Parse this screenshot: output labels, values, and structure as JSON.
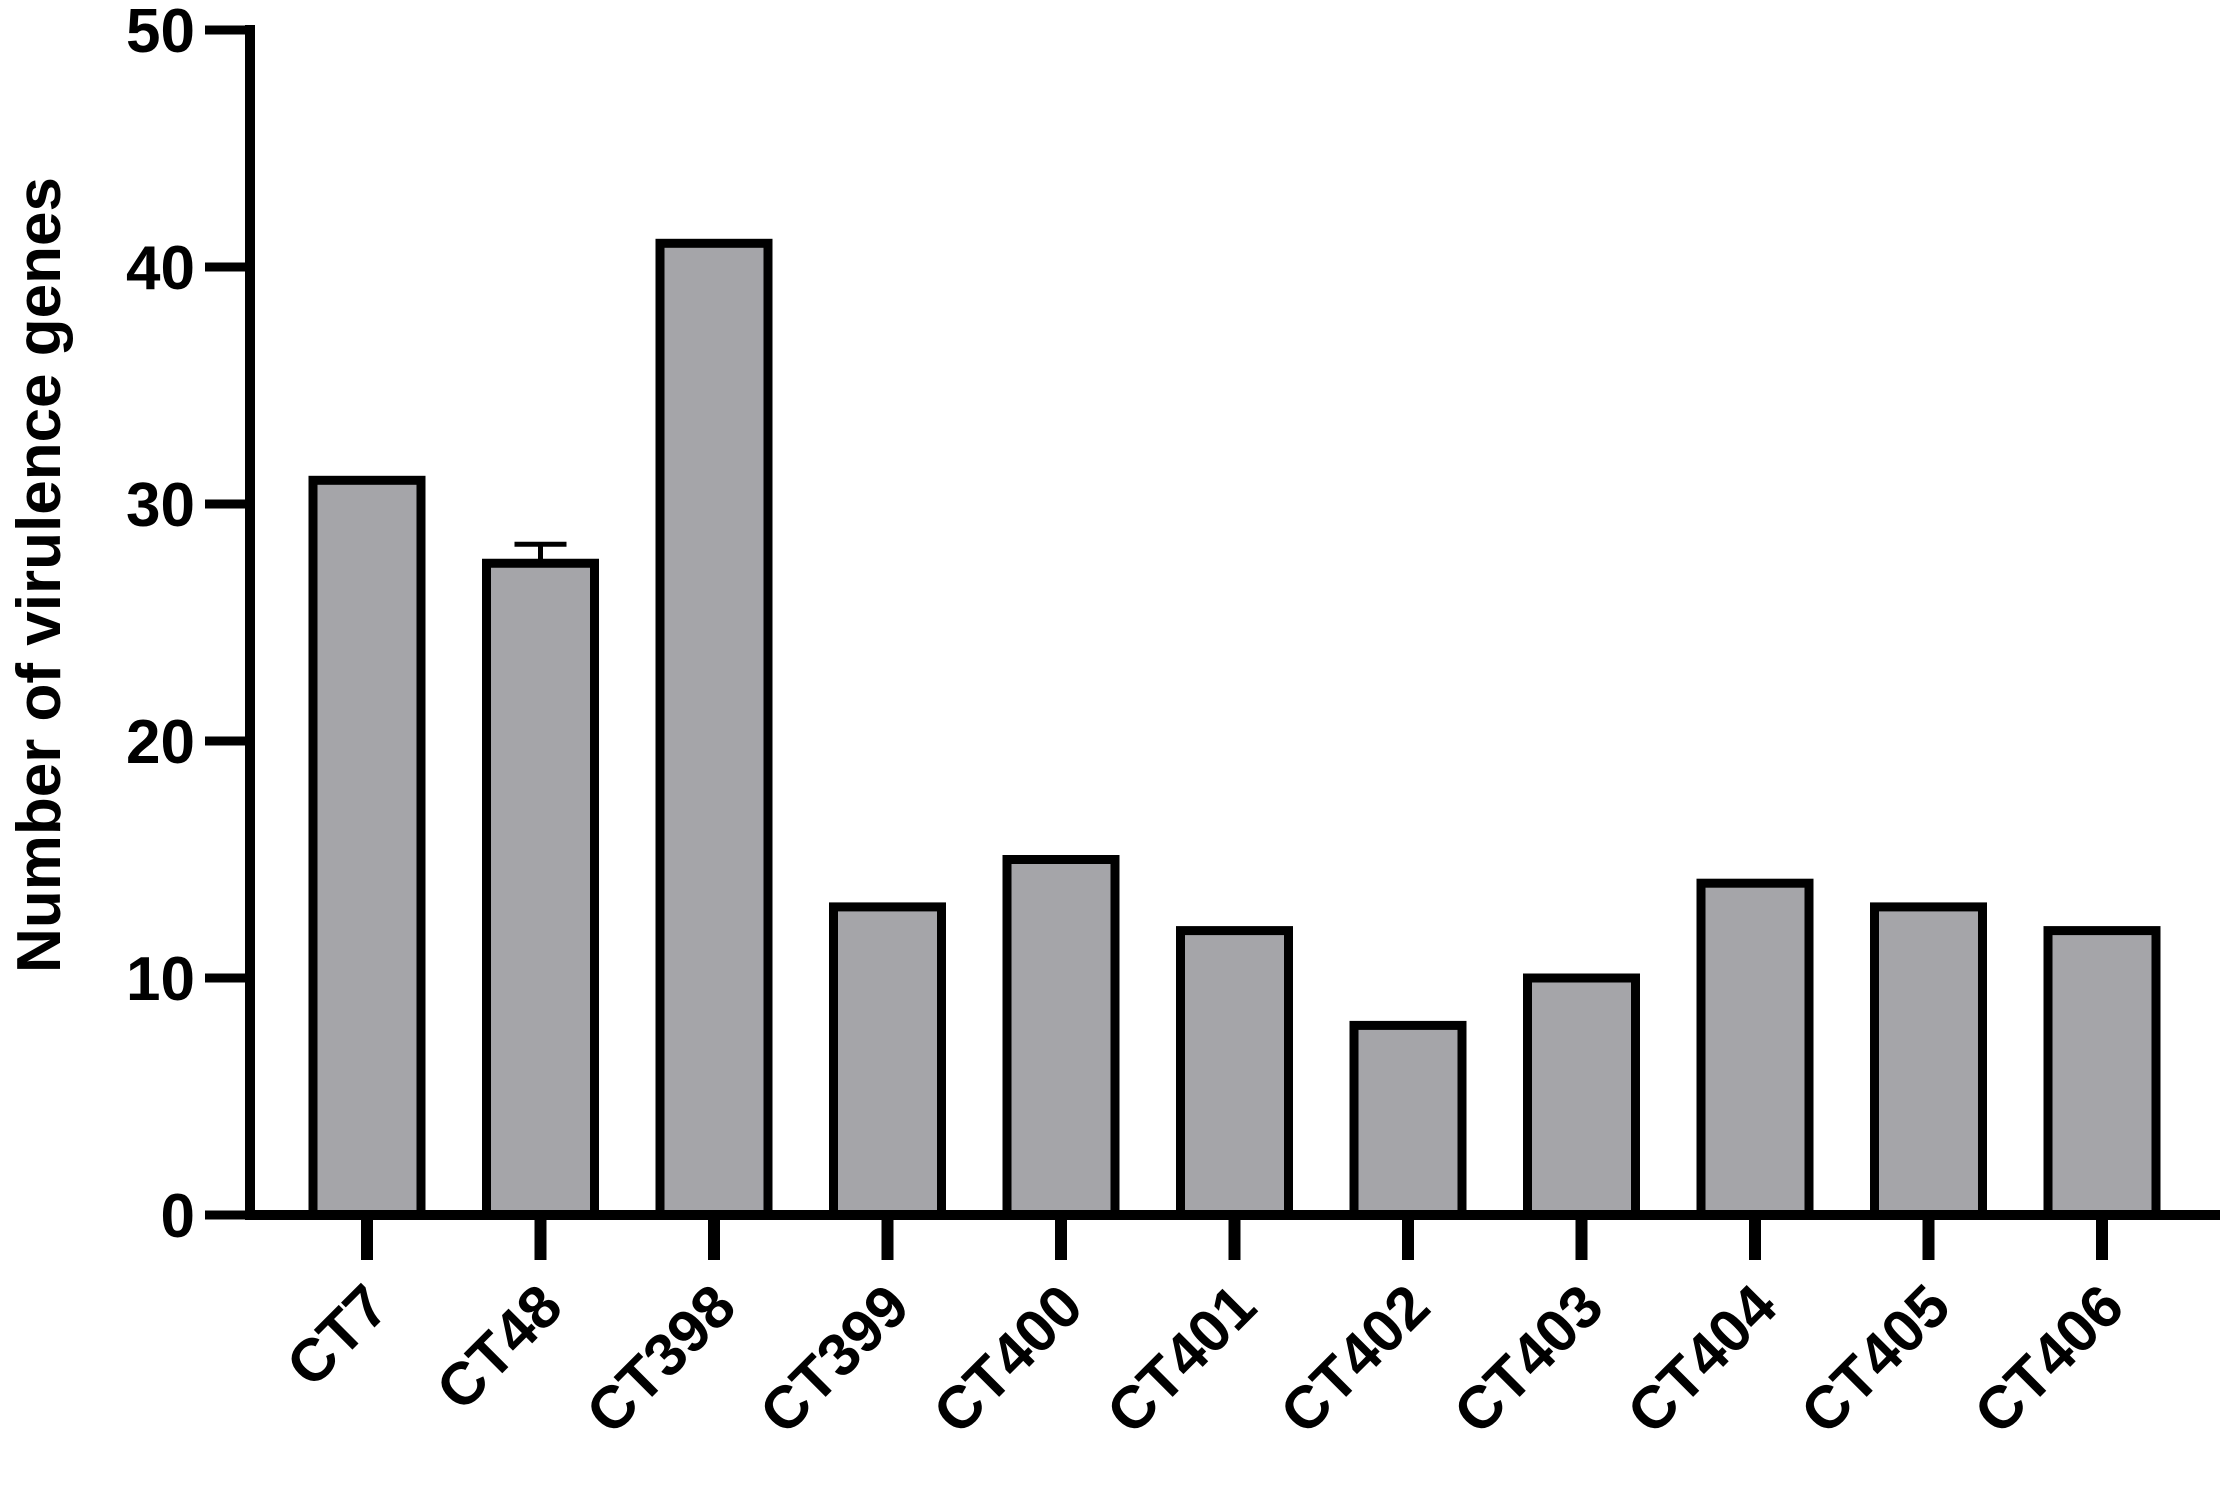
{
  "chart_data": {
    "type": "bar",
    "title": "",
    "xlabel": "",
    "ylabel": "Number of virulence genes",
    "ylim": [
      0,
      50
    ],
    "yticks": [
      0,
      10,
      20,
      30,
      40,
      50
    ],
    "categories": [
      "CT7",
      "CT48",
      "CT398",
      "CT399",
      "CT400",
      "CT401",
      "CT402",
      "CT403",
      "CT404",
      "CT405",
      "CT406"
    ],
    "values": [
      31,
      27.5,
      41,
      13,
      15,
      12,
      8,
      10,
      14,
      13,
      12
    ],
    "error_bars": [
      0,
      0.8,
      0,
      0,
      0,
      0,
      0,
      0,
      0,
      0,
      0
    ],
    "bar_color": "#a5a5a9",
    "bar_edge_color": "#000000",
    "grid": false,
    "legend": "none"
  }
}
